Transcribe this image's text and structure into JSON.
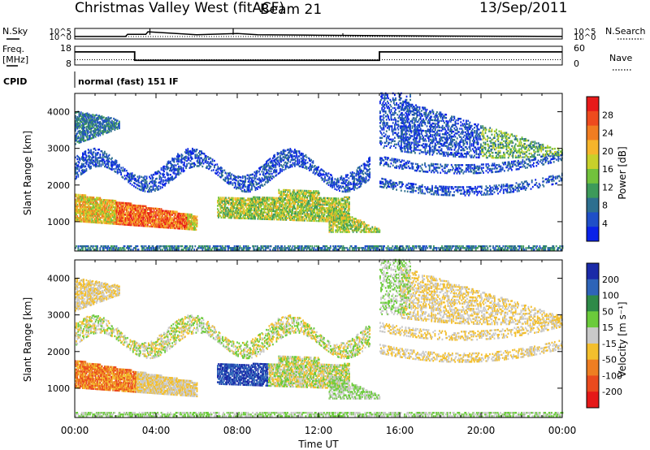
{
  "header": {
    "title": "Christmas Valley West (fitACF)",
    "beam": "Beam 21",
    "date": "13/Sep/2011"
  },
  "labels": {
    "nsky": "N.Sky",
    "nsearch": "N.Search",
    "freq_top": "Freq.",
    "freq_unit": "[MHz]",
    "nave": "Nave",
    "cpid": "CPID",
    "cpid_value": "normal (fast) 151 IF"
  },
  "chart_data": [
    {
      "type": "line",
      "name": "noise",
      "ytick_labels_left": [
        "10^5",
        "10^0"
      ],
      "ytick_labels_right": [
        "10^5",
        "10^0"
      ],
      "series": [
        {
          "x": [
            0,
            2.5,
            2.6,
            3.5,
            3.6,
            6.0,
            7.0,
            8.0,
            9.0,
            12.0,
            15.0,
            18.0,
            21.0,
            24.0
          ],
          "y": [
            1.2,
            1.2,
            2.2,
            2.2,
            3.4,
            2.0,
            2.3,
            2.6,
            2.0,
            1.8,
            1.6,
            1.4,
            1.3,
            1.2
          ]
        }
      ],
      "ylim": [
        0,
        5
      ]
    },
    {
      "type": "line",
      "name": "frequency_nave",
      "ytick_labels_left": [
        "18",
        "8"
      ],
      "ytick_labels_right": [
        "60",
        "0"
      ],
      "series": [
        {
          "x": [
            0,
            2.95,
            2.95,
            15.0,
            15.0,
            24.0
          ],
          "y": [
            15,
            15,
            10.5,
            10.5,
            15,
            15
          ]
        },
        {
          "x": [
            0,
            24
          ],
          "y": [
            10.8,
            10.8
          ]
        }
      ],
      "ylim": [
        8,
        18
      ]
    },
    {
      "type": "heatmap",
      "name": "power",
      "ylabel": "Slant Range [km]",
      "xlabel": "",
      "xlim": [
        0,
        24
      ],
      "ylim": [
        200,
        4500
      ],
      "yticks": [
        1000,
        2000,
        3000,
        4000
      ],
      "colorbar_label": "Power [dB]",
      "colorbar_ticks": [
        "4",
        "8",
        "12",
        "16",
        "20",
        "24",
        "28"
      ],
      "colorbar_colors": [
        "#0a22e8",
        "#1f4fc8",
        "#2d6f8f",
        "#3d9a5a",
        "#72c23c",
        "#c8d02a",
        "#f6b52b",
        "#f17d21",
        "#ee4b1e",
        "#e81a1a"
      ]
    },
    {
      "type": "heatmap",
      "name": "velocity",
      "ylabel": "Slant Range [km]",
      "xlabel": "Time UT",
      "xlim": [
        0,
        24
      ],
      "ylim": [
        200,
        4500
      ],
      "yticks": [
        1000,
        2000,
        3000,
        4000
      ],
      "xtick_labels": [
        "00:00",
        "04:00",
        "08:00",
        "12:00",
        "16:00",
        "20:00",
        "00:00"
      ],
      "colorbar_label": "Velocity [m s⁻¹]",
      "colorbar_ticks": [
        "200",
        "100",
        "50",
        "15",
        "-15",
        "-50",
        "-100",
        "-200"
      ],
      "colorbar_colors": [
        "#1a2aa8",
        "#2e64b8",
        "#2e8a48",
        "#6bcb3b",
        "#c9c9c9",
        "#f3bf2d",
        "#ee7e22",
        "#ea4a1e",
        "#e51818"
      ]
    }
  ]
}
